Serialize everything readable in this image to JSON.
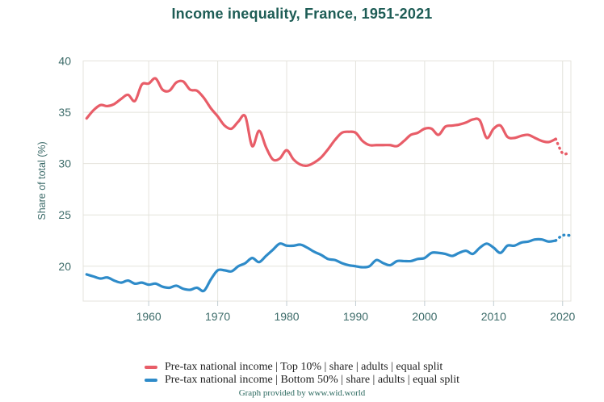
{
  "caption": "Graph provided by www.wid.world",
  "colors": {
    "title": "#1d5c55",
    "axis_text": "#3c6b69",
    "grid": "#e4e3dc",
    "tick_mark": "#c2cdd2",
    "legend_text": "#222222",
    "caption": "#2d6a60",
    "top10_red": "#e85d68",
    "bottom50_blue": "#2e8bc9"
  },
  "chart_data": {
    "type": "line",
    "title": "Income inequality, France, 1951-2021",
    "xlabel": "",
    "ylabel": "Share of total (%)",
    "grid": true,
    "legend_position": "bottom",
    "xlim": [
      1950.5,
      2021.2
    ],
    "ylim": [
      16.6,
      40
    ],
    "x_ticks": [
      1960,
      1970,
      1980,
      1990,
      2000,
      2010,
      2020
    ],
    "y_ticks": [
      20,
      25,
      30,
      35,
      40
    ],
    "years": {
      "from": 1951,
      "to": 2021
    },
    "series": [
      {
        "name": "Pre-tax national income | Top 10% | share | adults | equal split",
        "color": "#e85d68",
        "dotted_from": 2019,
        "values": [
          34.4,
          35.2,
          35.7,
          35.6,
          35.8,
          36.3,
          36.7,
          36.1,
          37.7,
          37.8,
          38.3,
          37.2,
          37.1,
          37.9,
          38.0,
          37.2,
          37.1,
          36.4,
          35.4,
          34.6,
          33.7,
          33.4,
          34.1,
          34.6,
          31.7,
          33.2,
          31.6,
          30.4,
          30.5,
          31.3,
          30.4,
          29.9,
          29.8,
          30.1,
          30.6,
          31.4,
          32.3,
          33.0,
          33.1,
          33.0,
          32.2,
          31.8,
          31.8,
          31.8,
          31.8,
          31.7,
          32.2,
          32.8,
          33.0,
          33.4,
          33.4,
          32.8,
          33.6,
          33.7,
          33.8,
          34.0,
          34.3,
          34.2,
          32.5,
          33.4,
          33.7,
          32.6,
          32.5,
          32.7,
          32.8,
          32.5,
          32.2,
          32.1,
          32.4,
          31.0,
          31.1
        ]
      },
      {
        "name": "Pre-tax national income | Bottom 50% | share | adults | equal split",
        "color": "#2e8bc9",
        "dotted_from": 2019,
        "values": [
          19.2,
          19.0,
          18.8,
          18.9,
          18.6,
          18.4,
          18.6,
          18.3,
          18.4,
          18.2,
          18.3,
          18.0,
          17.9,
          18.1,
          17.8,
          17.7,
          17.9,
          17.6,
          18.7,
          19.6,
          19.6,
          19.5,
          20.0,
          20.3,
          20.8,
          20.4,
          21.0,
          21.6,
          22.2,
          22.0,
          22.0,
          22.1,
          21.8,
          21.4,
          21.1,
          20.7,
          20.6,
          20.3,
          20.1,
          20.0,
          19.9,
          20.0,
          20.6,
          20.3,
          20.1,
          20.5,
          20.5,
          20.5,
          20.7,
          20.8,
          21.3,
          21.3,
          21.2,
          21.0,
          21.3,
          21.5,
          21.2,
          21.8,
          22.2,
          21.8,
          21.3,
          22.0,
          22.0,
          22.3,
          22.4,
          22.6,
          22.6,
          22.4,
          22.5,
          23.0,
          23.0
        ]
      }
    ]
  }
}
